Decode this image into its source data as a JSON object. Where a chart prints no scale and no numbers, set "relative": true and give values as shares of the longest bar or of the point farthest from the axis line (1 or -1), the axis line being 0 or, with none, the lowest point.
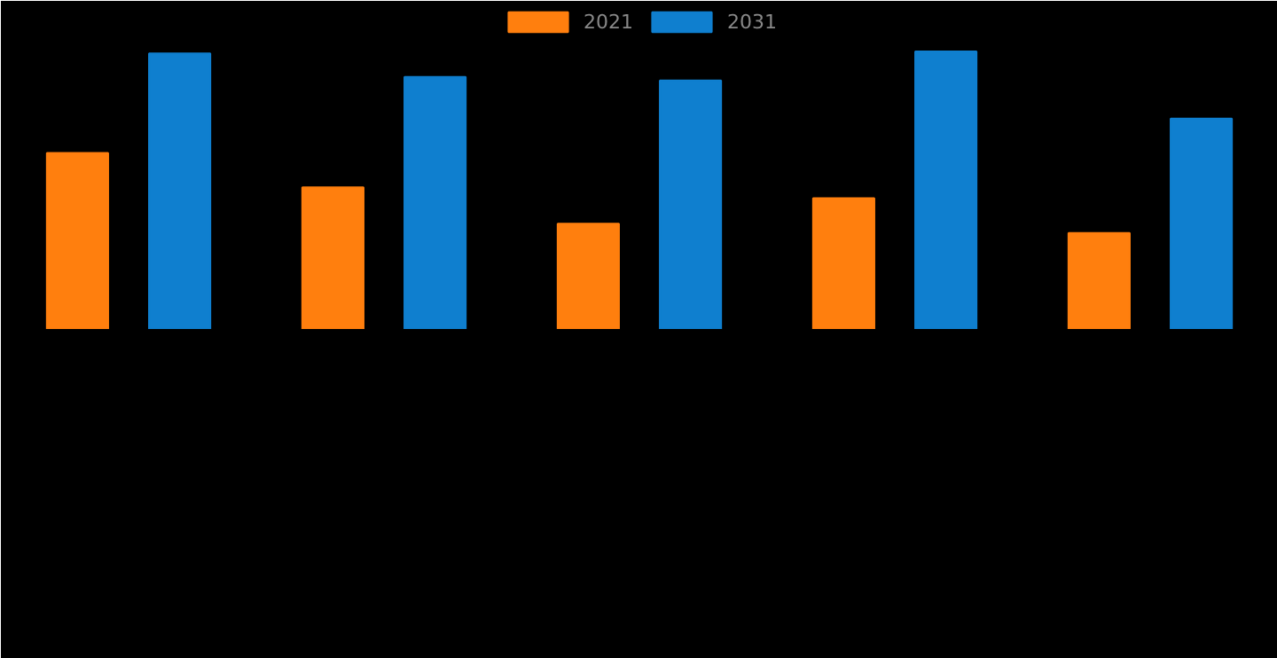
{
  "chart_data": {
    "type": "bar",
    "relative": true,
    "legend": "top",
    "categories": [
      null,
      null,
      null,
      null,
      null
    ],
    "series": [
      {
        "name": "2021",
        "color": "#ff7f0e",
        "values": [
          0.634,
          0.51,
          0.379,
          0.471,
          0.346
        ]
      },
      {
        "name": "2031",
        "color": "#0f7fcf",
        "values": [
          0.993,
          0.908,
          0.895,
          1,
          0.758
        ]
      }
    ]
  }
}
